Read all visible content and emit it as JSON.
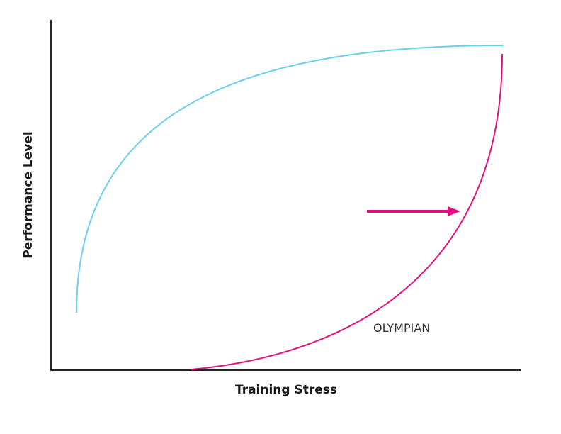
{
  "axes": {
    "y_label": "Performance Level",
    "x_label": "Training Stress"
  },
  "annotations": [
    {
      "label": "OLYMPIAN"
    }
  ]
}
